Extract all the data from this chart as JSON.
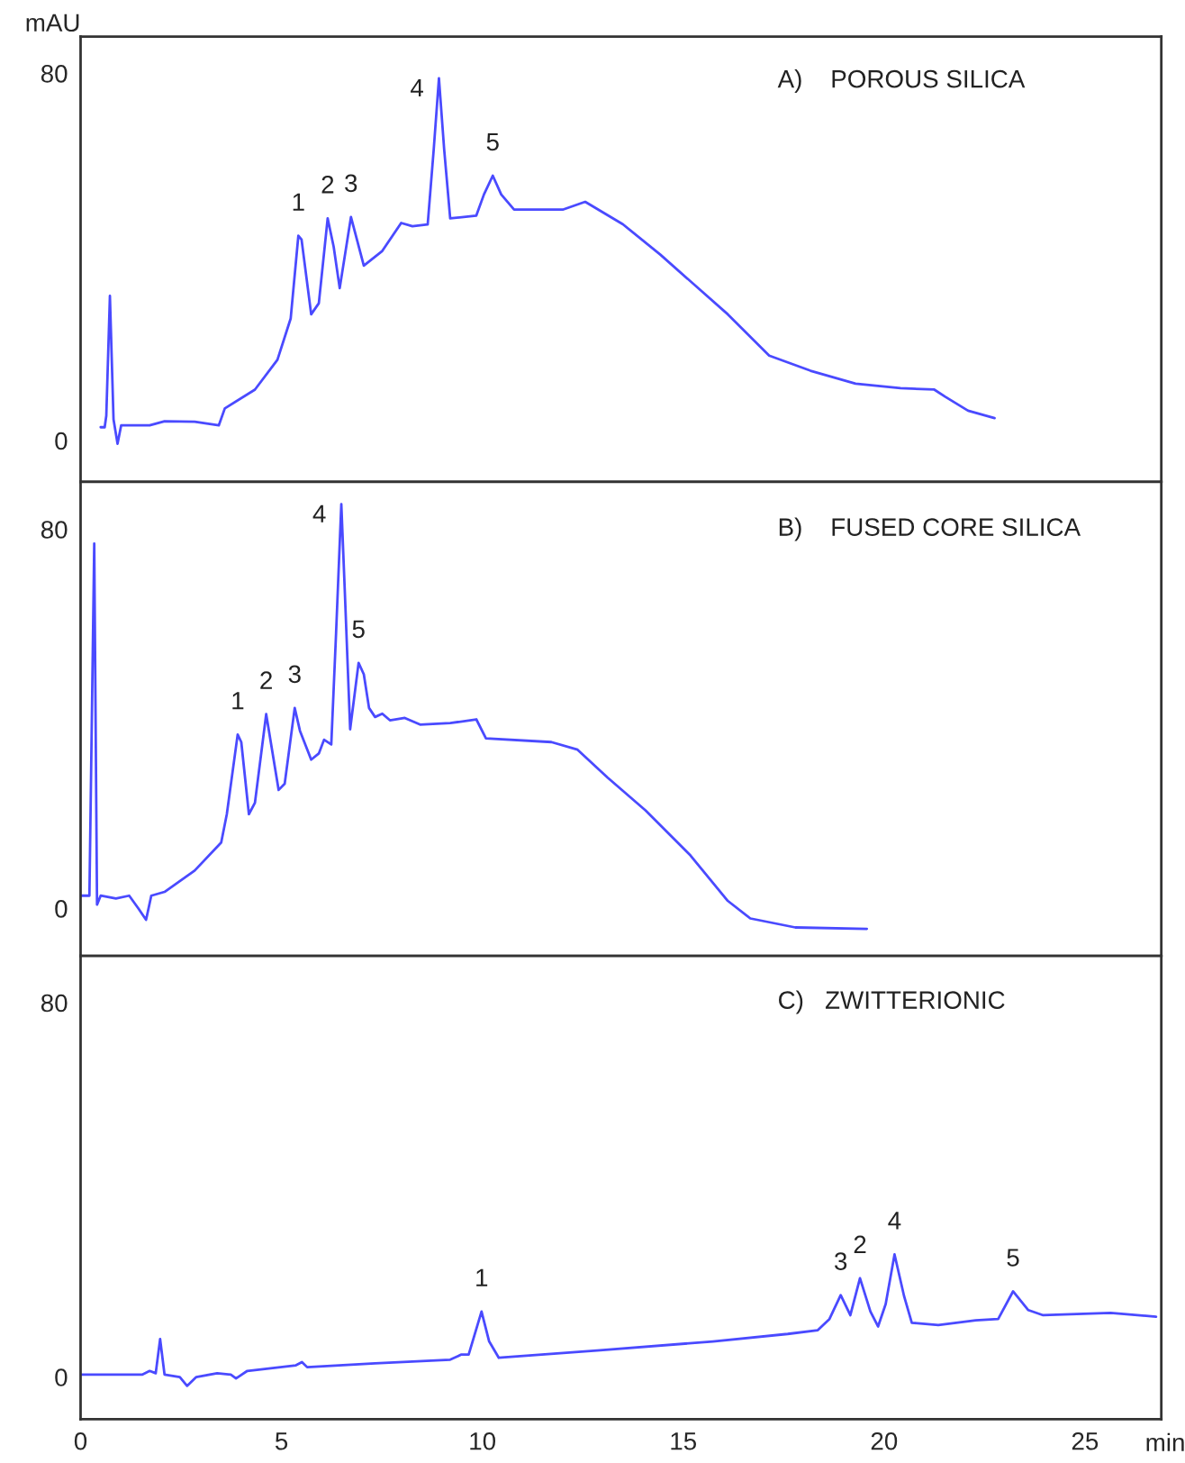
{
  "chart_data": [
    {
      "type": "line",
      "title": "A)    POROUS SILICA",
      "ylabel": "mAU",
      "xlim": [
        0,
        26.9
      ],
      "ylim": [
        -9,
        88
      ],
      "yticks": [
        0,
        80
      ],
      "tick_labels": "y",
      "x": [
        0.5,
        0.6,
        0.64,
        0.73,
        0.82,
        0.92,
        1.01,
        1.72,
        2.09,
        2.84,
        3.44,
        3.59,
        4.34,
        4.9,
        5.23,
        5.42,
        5.5,
        5.74,
        5.93,
        6.15,
        6.3,
        6.45,
        6.73,
        7.05,
        7.51,
        7.98,
        8.26,
        8.64,
        8.79,
        8.92,
        9.05,
        9.2,
        9.85,
        10.04,
        10.26,
        10.47,
        10.79,
        12.0,
        12.56,
        13.5,
        14.43,
        16.11,
        17.14,
        18.17,
        19.29,
        20.41,
        21.25,
        21.53,
        22.09,
        22.75
      ],
      "series": [
        {
          "color": "#4a4aff",
          "values": [
            2.9,
            2.9,
            5.4,
            31.5,
            4.6,
            -0.7,
            3.3,
            3.3,
            4.2,
            4.1,
            3.3,
            7.0,
            11.1,
            17.6,
            26.6,
            44.6,
            43.8,
            27.5,
            29.9,
            48.4,
            42.2,
            33.2,
            48.7,
            38.1,
            41.3,
            47.4,
            46.7,
            47.1,
            63.4,
            78.9,
            63.4,
            48.4,
            49.0,
            53.6,
            57.7,
            53.6,
            50.3,
            50.3,
            52.0,
            47.1,
            40.5,
            27.5,
            18.5,
            15.2,
            12.4,
            11.4,
            11.1,
            9.5,
            6.5,
            4.9
          ]
        }
      ],
      "annotations": [
        {
          "text": "1",
          "x": 5.42,
          "y": 44.6
        },
        {
          "text": "2",
          "x": 6.15,
          "y": 48.4
        },
        {
          "text": "3",
          "x": 6.73,
          "y": 48.7
        },
        {
          "text": "4",
          "x": 8.92,
          "y": 78.9
        },
        {
          "text": "5",
          "x": 10.26,
          "y": 57.7
        }
      ]
    },
    {
      "type": "line",
      "title": "B)    FUSED CORE SILICA",
      "xlim": [
        0,
        26.9
      ],
      "ylim": [
        -10,
        90
      ],
      "yticks": [
        0,
        80
      ],
      "tick_labels": "y",
      "x": [
        0,
        0.22,
        0.34,
        0.41,
        0.5,
        0.88,
        1.21,
        1.44,
        1.63,
        1.76,
        2.09,
        2.84,
        3.5,
        3.64,
        3.91,
        4.0,
        4.19,
        4.34,
        4.62,
        4.93,
        5.08,
        5.33,
        5.46,
        5.74,
        5.93,
        6.06,
        6.24,
        6.36,
        6.49,
        6.58,
        6.71,
        6.92,
        7.05,
        7.18,
        7.33,
        7.51,
        7.7,
        8.07,
        8.45,
        9.2,
        9.85,
        10.09,
        11.72,
        12.37,
        13.12,
        14.06,
        15.18,
        16.11,
        16.67,
        17.79,
        19.57
      ],
      "series": [
        {
          "color": "#4a4aff",
          "values": [
            2.7,
            2.7,
            77.0,
            0.8,
            2.7,
            2.1,
            2.7,
            0,
            -2.4,
            2.7,
            3.5,
            8.0,
            13.9,
            19.9,
            36.7,
            35.1,
            19.9,
            22.3,
            41.0,
            25.0,
            26.3,
            42.3,
            37.5,
            31.4,
            32.7,
            35.6,
            34.6,
            58.2,
            85.3,
            66.2,
            37.8,
            51.8,
            49.4,
            42.3,
            40.4,
            41.1,
            39.7,
            40.2,
            38.8,
            39.1,
            39.9,
            35.9,
            35.1,
            33.5,
            27.6,
            20.7,
            11.2,
            1.6,
            -2.1,
            -4.0,
            -4.3
          ]
        }
      ],
      "annotations": [
        {
          "text": "1",
          "x": 3.91,
          "y": 36.7
        },
        {
          "text": "2",
          "x": 4.62,
          "y": 41.0
        },
        {
          "text": "3",
          "x": 5.33,
          "y": 42.3
        },
        {
          "text": "4",
          "x": 6.49,
          "y": 85.3
        },
        {
          "text": "5",
          "x": 6.92,
          "y": 51.8
        }
      ]
    },
    {
      "type": "line",
      "title": "C)   ZWITTERIONIC",
      "xlabel": "min",
      "xlim": [
        0,
        26.9
      ],
      "ylim": [
        -9,
        90
      ],
      "xticks": [
        0,
        5,
        10,
        15,
        20,
        25
      ],
      "yticks": [
        0,
        80
      ],
      "x": [
        0,
        1.53,
        1.72,
        1.87,
        1.98,
        2.09,
        2.47,
        2.65,
        2.88,
        3.4,
        3.74,
        3.87,
        4.15,
        5.36,
        5.51,
        5.64,
        7.33,
        9.2,
        9.48,
        9.66,
        9.98,
        10.17,
        10.41,
        12.93,
        15.74,
        17.6,
        18.35,
        18.64,
        18.92,
        19.16,
        19.4,
        19.66,
        19.85,
        20.04,
        20.26,
        20.5,
        20.69,
        21.35,
        22.28,
        22.84,
        23.21,
        23.59,
        23.96,
        25.64,
        26.77
      ],
      "series": [
        {
          "color": "#4a4aff",
          "values": [
            0.5,
            0.5,
            1.3,
            0.8,
            8.1,
            0.5,
            0,
            -1.9,
            0,
            0.8,
            0.5,
            -0.3,
            1.3,
            2.5,
            3.2,
            2.1,
            2.9,
            3.7,
            4.8,
            4.8,
            14.0,
            7.6,
            4.1,
            5.7,
            7.6,
            9.2,
            10.0,
            12.4,
            17.5,
            13.2,
            21.1,
            14.0,
            10.8,
            15.6,
            26.2,
            17.2,
            11.6,
            11.1,
            12.1,
            12.4,
            18.3,
            14.3,
            13.2,
            13.7,
            12.9
          ]
        }
      ],
      "annotations": [
        {
          "text": "1",
          "x": 9.98,
          "y": 14.0
        },
        {
          "text": "3",
          "x": 18.92,
          "y": 17.5
        },
        {
          "text": "2",
          "x": 19.4,
          "y": 21.1
        },
        {
          "text": "4",
          "x": 20.26,
          "y": 26.2
        },
        {
          "text": "5",
          "x": 23.21,
          "y": 18.3
        }
      ]
    }
  ]
}
